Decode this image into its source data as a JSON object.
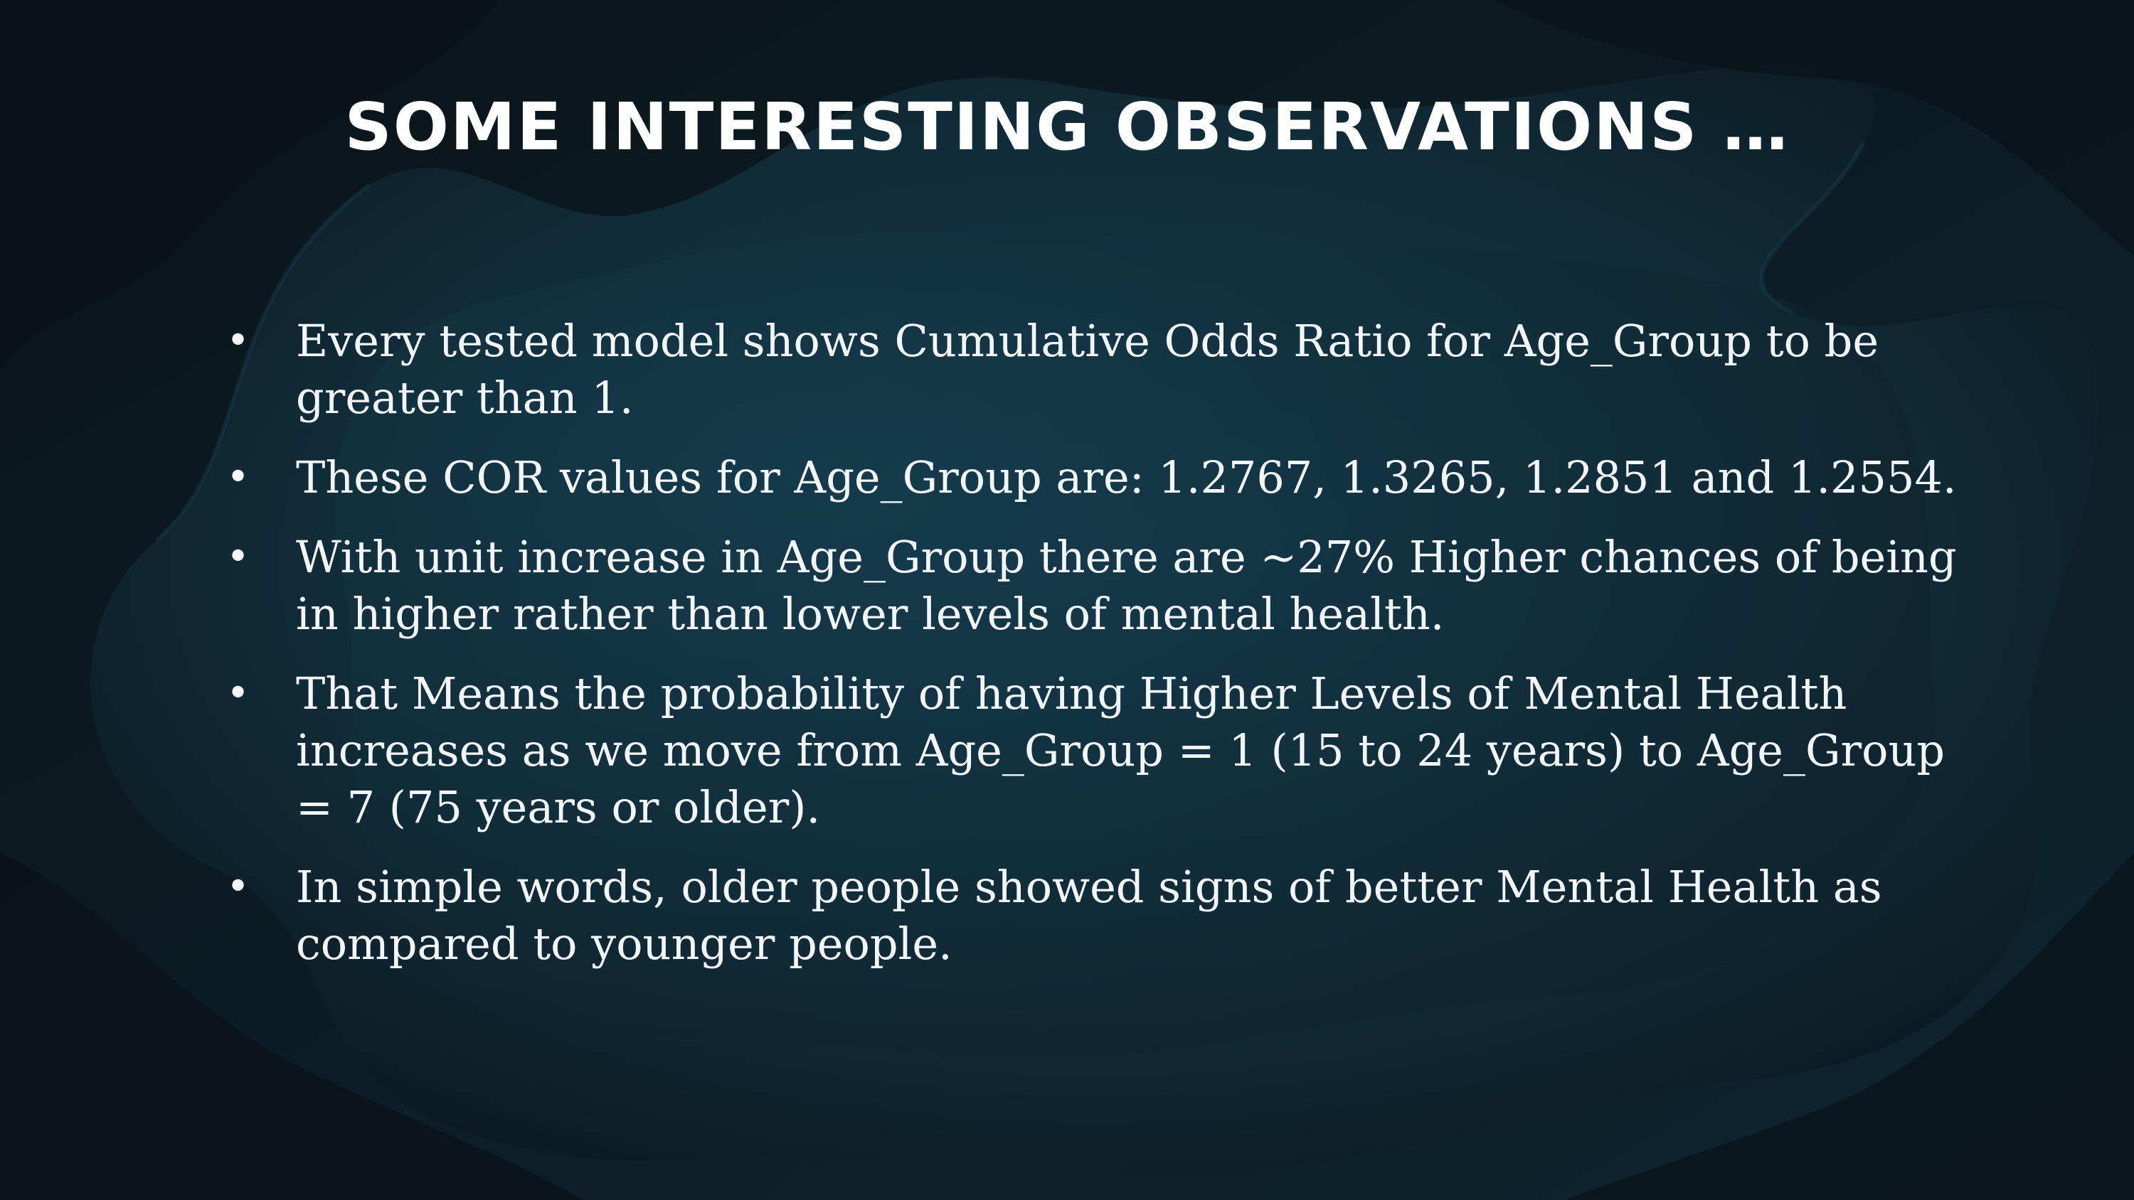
{
  "slide": {
    "title": "SOME INTERESTING OBSERVATIONS …",
    "bullet_glyph": "•",
    "bullets": [
      "Every tested model shows Cumulative Odds Ratio for Age_Group to be greater than 1.",
      "These COR values for Age_Group are:  1.2767, 1.3265, 1.2851 and 1.2554.",
      "With unit increase in Age_Group there are ~27% Higher chances of being in higher rather than lower levels of mental health.",
      "That Means the probability of having Higher Levels of Mental Health increases as we move from Age_Group = 1 (15 to 24 years) to Age_Group = 7 (75 years or older).",
      "In simple words, older people showed signs of better Mental Health as compared to younger people."
    ]
  },
  "colors": {
    "background_dark": "#0d1a22",
    "background_teal": "#133442",
    "text": "#f3f6f8"
  }
}
